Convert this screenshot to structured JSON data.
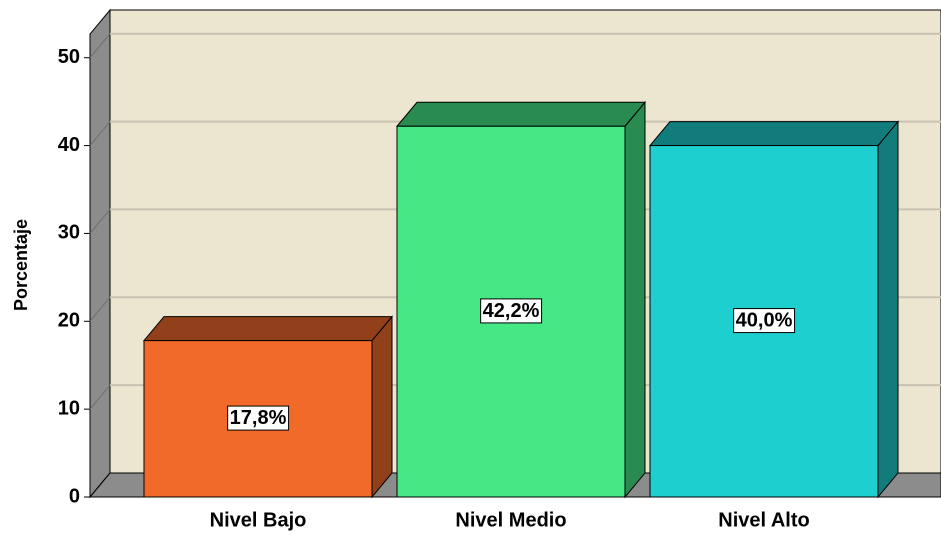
{
  "chart_data": {
    "type": "bar3d",
    "y_label": "Porcentaje",
    "categories": [
      "Nivel Bajo",
      "Nivel Medio",
      "Nivel Alto"
    ],
    "values": [
      17.8,
      42.2,
      40.0
    ],
    "value_labels": [
      "17,8%",
      "42,2%",
      "40,0%"
    ],
    "colors": [
      "#f26a2a",
      "#45e885",
      "#1ecfcf"
    ],
    "ylim": [
      0,
      52.7
    ],
    "yticks": [
      0,
      10,
      20,
      30,
      40,
      50
    ],
    "grid": true
  }
}
